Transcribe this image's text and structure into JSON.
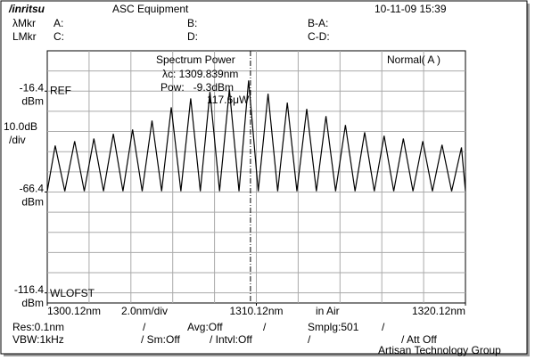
{
  "header": {
    "logo": "/inritsu",
    "title": "ASC Equipment",
    "datetime": "10-11-09 15:39"
  },
  "markers": {
    "row1": [
      "λMkr",
      "A:",
      "B:",
      "B-A:"
    ],
    "row2": [
      "LMkr",
      "C:",
      "D:",
      "C-D:"
    ]
  },
  "chart_data": {
    "type": "line",
    "x": [
      1300.12,
      1300.5,
      1300.96,
      1301.43,
      1301.89,
      1302.35,
      1302.81,
      1303.28,
      1303.74,
      1304.2,
      1304.66,
      1305.13,
      1305.59,
      1306.05,
      1306.51,
      1306.98,
      1307.44,
      1307.9,
      1308.36,
      1308.83,
      1309.29,
      1309.75,
      1310.21,
      1310.68,
      1311.14,
      1311.6,
      1312.06,
      1312.53,
      1312.99,
      1313.45,
      1313.91,
      1314.38,
      1314.84,
      1315.3,
      1315.76,
      1316.23,
      1316.69,
      1317.15,
      1317.61,
      1318.08,
      1318.54,
      1319.0,
      1319.46,
      1319.93,
      1320.12
    ],
    "values": [
      -66,
      -43.4,
      -66,
      -41.2,
      -66,
      -39.9,
      -66,
      -37.6,
      -66,
      -35.4,
      -66,
      -31.0,
      -66,
      -24.4,
      -66,
      -20.0,
      -66,
      -16.8,
      -66,
      -15.5,
      -66,
      -11.1,
      -66,
      -17.7,
      -66,
      -22.1,
      -66,
      -25.2,
      -66,
      -28.8,
      -66,
      -33.2,
      -66,
      -36.8,
      -66,
      -38.5,
      -66,
      -39.9,
      -66,
      -41.2,
      -66,
      -43.0,
      -66,
      -44.3,
      -66
    ],
    "color": "#000000",
    "xlim": [
      1300.12,
      1320.12
    ],
    "ylim": [
      -121.4,
      3.6
    ],
    "xticks": [
      {
        "value": 1300.12,
        "label": "1300.12nm"
      },
      {
        "value": 1310.12,
        "label": "1310.12nm"
      },
      {
        "value": 1320.12,
        "label": "1320.12nm"
      }
    ],
    "yticks": [
      -16.4,
      -66.4,
      -116.4
    ],
    "y_unit": "dBm",
    "xgrid": [
      1302.12,
      1304.12,
      1306.12,
      1308.12,
      1310.12,
      1312.12,
      1314.12,
      1316.12,
      1318.12
    ],
    "ygrid": [
      -6.4,
      -16.4,
      -26.4,
      -36.4,
      -46.4,
      -56.4,
      -66.4,
      -76.4,
      -86.4,
      -96.4,
      -106.4,
      -116.4
    ],
    "grid": true,
    "y_scale": [
      "10.0dB",
      "/div"
    ],
    "x_scale": "2.0nm/div",
    "medium": "in Air",
    "ref_label": "REF",
    "offset_label": "WLOFST",
    "mode": "Normal( A )",
    "annotations": [
      "Spectrum Power",
      "λc: 1309.839nm",
      "Pow:   -9.3dBm",
      "117.6μW"
    ],
    "marker_x": 1309.839
  },
  "footer": {
    "row1": [
      "Res:0.1nm",
      "/",
      "Avg:Off",
      "/",
      "Smplg:501",
      "/"
    ],
    "row2": [
      "VBW:1kHz",
      "/ Sm:Off",
      "/ Intvl:Off",
      "/",
      "/ Att Off"
    ]
  },
  "watermark": "Artisan Technology Group"
}
